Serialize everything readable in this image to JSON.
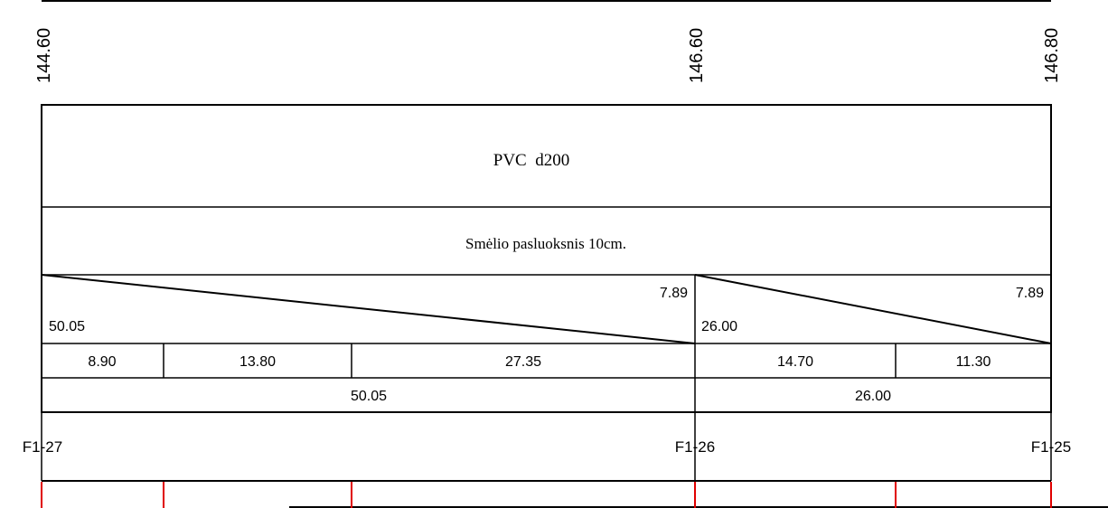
{
  "elevations": [
    "144.60",
    "146.60",
    "146.80"
  ],
  "pipe_label": "PVC  d200",
  "bedding_label": "Smėlio pasluoksnis 10cm.",
  "slope_segments": [
    {
      "left_value": "50.05",
      "right_value": "7.89"
    },
    {
      "left_value": "26.00",
      "right_value": "7.89"
    }
  ],
  "partial_distances": [
    "8.90",
    "13.80",
    "27.35",
    "14.70",
    "11.30"
  ],
  "segment_lengths": [
    "50.05",
    "26.00"
  ],
  "wells": [
    "F1-27",
    "F1-26",
    "F1-25"
  ],
  "colors": {
    "line": "#000000",
    "marker": "#e00000",
    "background": "#ffffff"
  }
}
